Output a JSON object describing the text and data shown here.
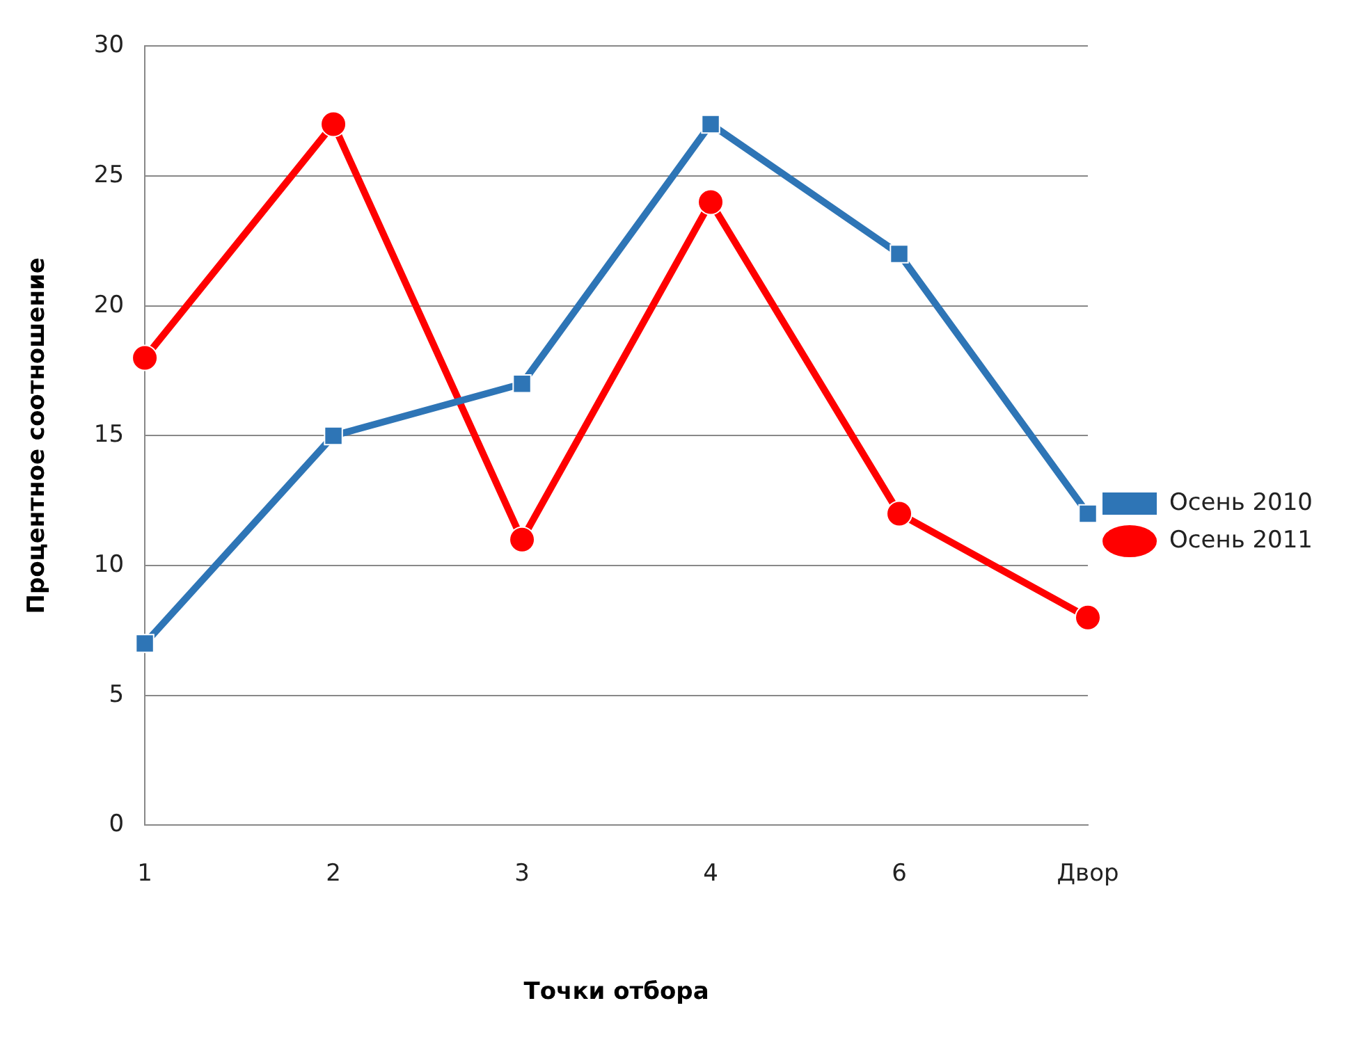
{
  "chart_data": {
    "type": "line",
    "xlabel": "Точки отбора",
    "ylabel": "Процентное соотношение",
    "categories": [
      "1",
      "2",
      "3",
      "4",
      "6",
      "Двор"
    ],
    "series": [
      {
        "name": "Осень 2010",
        "color": "#2e75b6",
        "marker": "square",
        "values": [
          7,
          15,
          17,
          27,
          22,
          12
        ]
      },
      {
        "name": "Осень 2011",
        "color": "#ff0000",
        "marker": "circle",
        "values": [
          18,
          27,
          11,
          24,
          12,
          8
        ]
      }
    ],
    "ylim": [
      0,
      30
    ],
    "yticks": [
      0,
      5,
      10,
      15,
      20,
      25,
      30
    ],
    "grid": "y",
    "legend": "right",
    "line_style": "solid"
  }
}
